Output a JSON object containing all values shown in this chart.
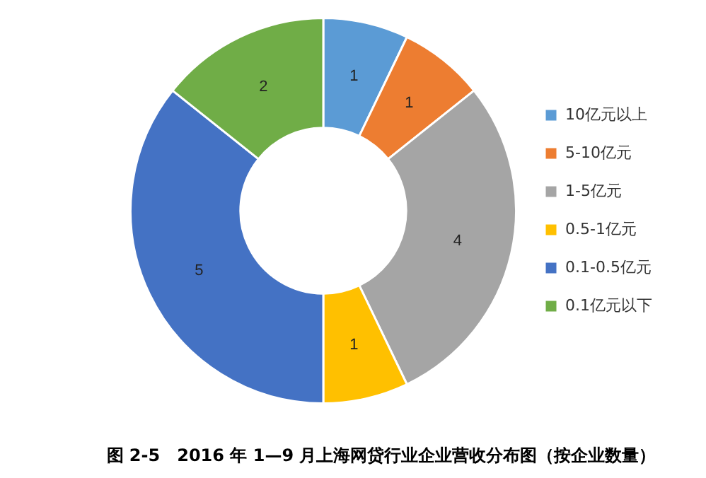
{
  "chart_data": {
    "type": "donut",
    "title": "图 2-5　2016 年 1—9 月上海网贷行业企业营收分布图（按企业数量）",
    "categories": [
      "10亿元以上",
      "5-10亿元",
      "1-5亿元",
      "0.5-1亿元",
      "0.1-0.5亿元",
      "0.1亿元以下"
    ],
    "values": [
      1,
      1,
      4,
      1,
      5,
      2
    ],
    "colors": [
      "#5b9bd5",
      "#ed7d31",
      "#a5a5a5",
      "#ffc000",
      "#4472c4",
      "#70ad47"
    ],
    "data_labels": true,
    "legend": "right"
  }
}
